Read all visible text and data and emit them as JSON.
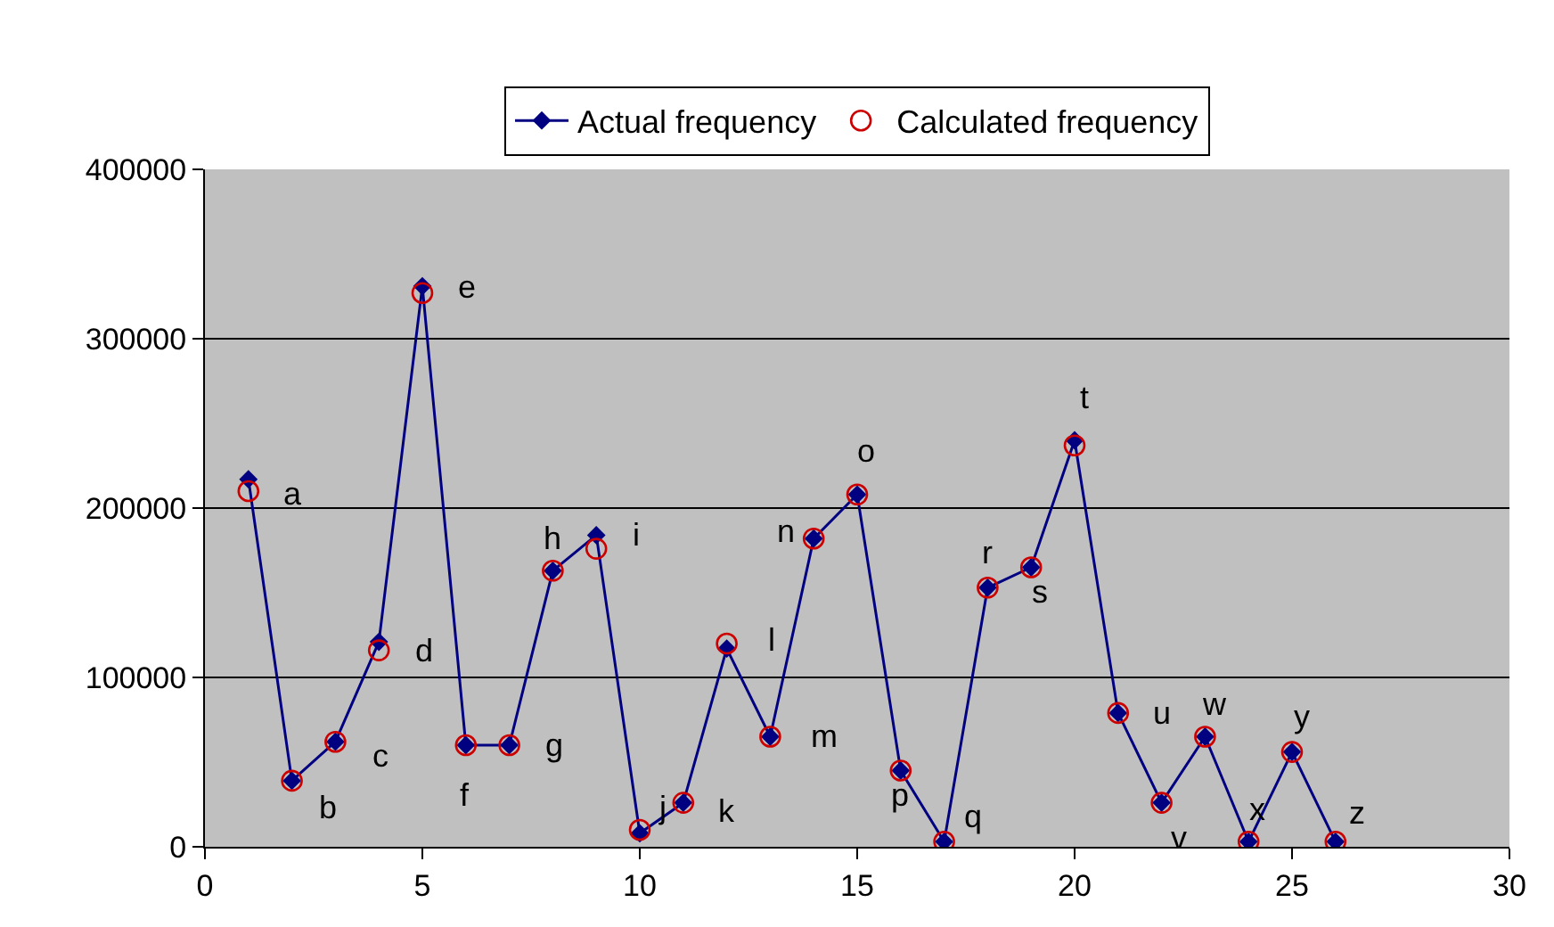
{
  "chart_data": {
    "type": "line",
    "x": [
      1,
      2,
      3,
      4,
      5,
      6,
      7,
      8,
      9,
      10,
      11,
      12,
      13,
      14,
      15,
      16,
      17,
      18,
      19,
      20,
      21,
      22,
      23,
      24,
      25,
      26
    ],
    "series": [
      {
        "name": "Actual frequency",
        "color": "#000080",
        "marker": "diamond",
        "values": [
          217000,
          39000,
          62000,
          121000,
          331000,
          60000,
          60000,
          163000,
          184000,
          8000,
          26000,
          117000,
          65000,
          182000,
          208000,
          45000,
          3000,
          153000,
          165000,
          240000,
          79000,
          26000,
          65000,
          3000,
          56000,
          3000
        ]
      },
      {
        "name": "Calculated frequency",
        "type": "scatter",
        "color": "#cc0000",
        "marker": "circle",
        "values": [
          210000,
          39000,
          62000,
          116000,
          327000,
          60000,
          60000,
          163000,
          176000,
          10000,
          26000,
          120000,
          65000,
          182000,
          208000,
          45000,
          3000,
          153000,
          165000,
          237000,
          79000,
          26000,
          65000,
          3000,
          56000,
          3000
        ]
      }
    ],
    "annotations": [
      {
        "text": "a",
        "x": 1,
        "y": 217000
      },
      {
        "text": "b",
        "x": 2,
        "y": 39000
      },
      {
        "text": "c",
        "x": 3,
        "y": 62000
      },
      {
        "text": "d",
        "x": 4,
        "y": 121000
      },
      {
        "text": "e",
        "x": 5,
        "y": 331000
      },
      {
        "text": "f",
        "x": 6,
        "y": 60000
      },
      {
        "text": "g",
        "x": 7,
        "y": 60000
      },
      {
        "text": "h",
        "x": 8,
        "y": 163000
      },
      {
        "text": "i",
        "x": 9,
        "y": 184000
      },
      {
        "text": "j",
        "x": 10,
        "y": 8000
      },
      {
        "text": "k",
        "x": 11,
        "y": 26000
      },
      {
        "text": "l",
        "x": 12,
        "y": 117000
      },
      {
        "text": "m",
        "x": 13,
        "y": 65000
      },
      {
        "text": "n",
        "x": 14,
        "y": 182000
      },
      {
        "text": "o",
        "x": 15,
        "y": 208000
      },
      {
        "text": "p",
        "x": 16,
        "y": 45000
      },
      {
        "text": "q",
        "x": 17,
        "y": 3000
      },
      {
        "text": "r",
        "x": 18,
        "y": 153000
      },
      {
        "text": "s",
        "x": 19,
        "y": 165000
      },
      {
        "text": "t",
        "x": 20,
        "y": 240000
      },
      {
        "text": "u",
        "x": 21,
        "y": 79000
      },
      {
        "text": "v",
        "x": 22,
        "y": 26000
      },
      {
        "text": "w",
        "x": 23,
        "y": 65000
      },
      {
        "text": "x",
        "x": 24,
        "y": 3000
      },
      {
        "text": "y",
        "x": 25,
        "y": 56000
      },
      {
        "text": "z",
        "x": 26,
        "y": 3000
      }
    ],
    "xlim": [
      0,
      30
    ],
    "xticks": [
      0,
      5,
      10,
      15,
      20,
      25,
      30
    ],
    "ylim": [
      0,
      400000
    ],
    "yticks": [
      0,
      100000,
      200000,
      300000,
      400000
    ],
    "grid": "y",
    "legend": "top"
  }
}
